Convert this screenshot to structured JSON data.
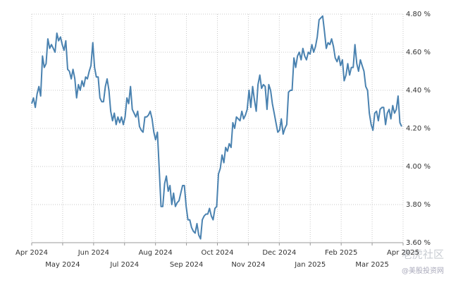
{
  "chart_data": {
    "type": "line",
    "x_labels": [
      "Apr 2024",
      "May 2024",
      "Jun 2024",
      "Jul 2024",
      "Aug 2024",
      "Sep 2024",
      "Oct 2024",
      "Nov 2024",
      "Dec 2024",
      "Jan 2025",
      "Feb 2025",
      "Mar 2025",
      "Apr 2025"
    ],
    "color": "#4a82b0",
    "ylim": [
      3.6,
      4.8
    ],
    "yticks": [
      {
        "value": 3.6,
        "label": "3.60 %"
      },
      {
        "value": 3.8,
        "label": "3.80 %"
      },
      {
        "value": 4.0,
        "label": "4.00 %"
      },
      {
        "value": 4.2,
        "label": "4.20 %"
      },
      {
        "value": 4.4,
        "label": "4.40 %"
      },
      {
        "value": 4.6,
        "label": "4.60 %"
      },
      {
        "value": 4.8,
        "label": "4.80 %"
      }
    ],
    "grid": true,
    "values": [
      4.33,
      4.36,
      4.31,
      4.38,
      4.42,
      4.37,
      4.58,
      4.52,
      4.54,
      4.67,
      4.62,
      4.64,
      4.62,
      4.6,
      4.7,
      4.66,
      4.68,
      4.64,
      4.61,
      4.66,
      4.51,
      4.5,
      4.46,
      4.51,
      4.46,
      4.36,
      4.43,
      4.4,
      4.45,
      4.42,
      4.47,
      4.46,
      4.5,
      4.53,
      4.65,
      4.52,
      4.47,
      4.47,
      4.36,
      4.34,
      4.34,
      4.42,
      4.46,
      4.4,
      4.29,
      4.24,
      4.28,
      4.22,
      4.26,
      4.23,
      4.26,
      4.22,
      4.26,
      4.36,
      4.33,
      4.42,
      4.3,
      4.28,
      4.26,
      4.29,
      4.21,
      4.19,
      4.18,
      4.26,
      4.26,
      4.27,
      4.29,
      4.25,
      4.18,
      4.14,
      4.18,
      3.99,
      3.79,
      3.79,
      3.91,
      3.95,
      3.87,
      3.9,
      3.8,
      3.86,
      3.79,
      3.81,
      3.82,
      3.86,
      3.9,
      3.9,
      3.79,
      3.72,
      3.72,
      3.68,
      3.66,
      3.65,
      3.7,
      3.64,
      3.62,
      3.72,
      3.74,
      3.75,
      3.75,
      3.78,
      3.74,
      3.72,
      3.78,
      3.79,
      3.96,
      3.99,
      4.06,
      4.02,
      4.1,
      4.08,
      4.12,
      4.1,
      4.23,
      4.2,
      4.26,
      4.25,
      4.24,
      4.29,
      4.25,
      4.27,
      4.3,
      4.4,
      4.31,
      4.42,
      4.35,
      4.29,
      4.43,
      4.48,
      4.41,
      4.43,
      4.42,
      4.3,
      4.43,
      4.4,
      4.33,
      4.28,
      4.23,
      4.18,
      4.19,
      4.25,
      4.17,
      4.2,
      4.22,
      4.39,
      4.4,
      4.4,
      4.57,
      4.52,
      4.58,
      4.6,
      4.56,
      4.62,
      4.58,
      4.56,
      4.6,
      4.59,
      4.64,
      4.6,
      4.63,
      4.68,
      4.77,
      4.78,
      4.79,
      4.71,
      4.62,
      4.65,
      4.64,
      4.67,
      4.63,
      4.57,
      4.55,
      4.58,
      4.53,
      4.56,
      4.45,
      4.48,
      4.54,
      4.48,
      4.52,
      4.52,
      4.64,
      4.54,
      4.5,
      4.56,
      4.53,
      4.5,
      4.42,
      4.4,
      4.28,
      4.22,
      4.19,
      4.28,
      4.29,
      4.24,
      4.3,
      4.31,
      4.31,
      4.22,
      4.28,
      4.3,
      4.25,
      4.32,
      4.28,
      4.3,
      4.37,
      4.23,
      4.21
    ],
    "watermark": "老虎社区",
    "watermark_sub": "@美股投资网"
  }
}
